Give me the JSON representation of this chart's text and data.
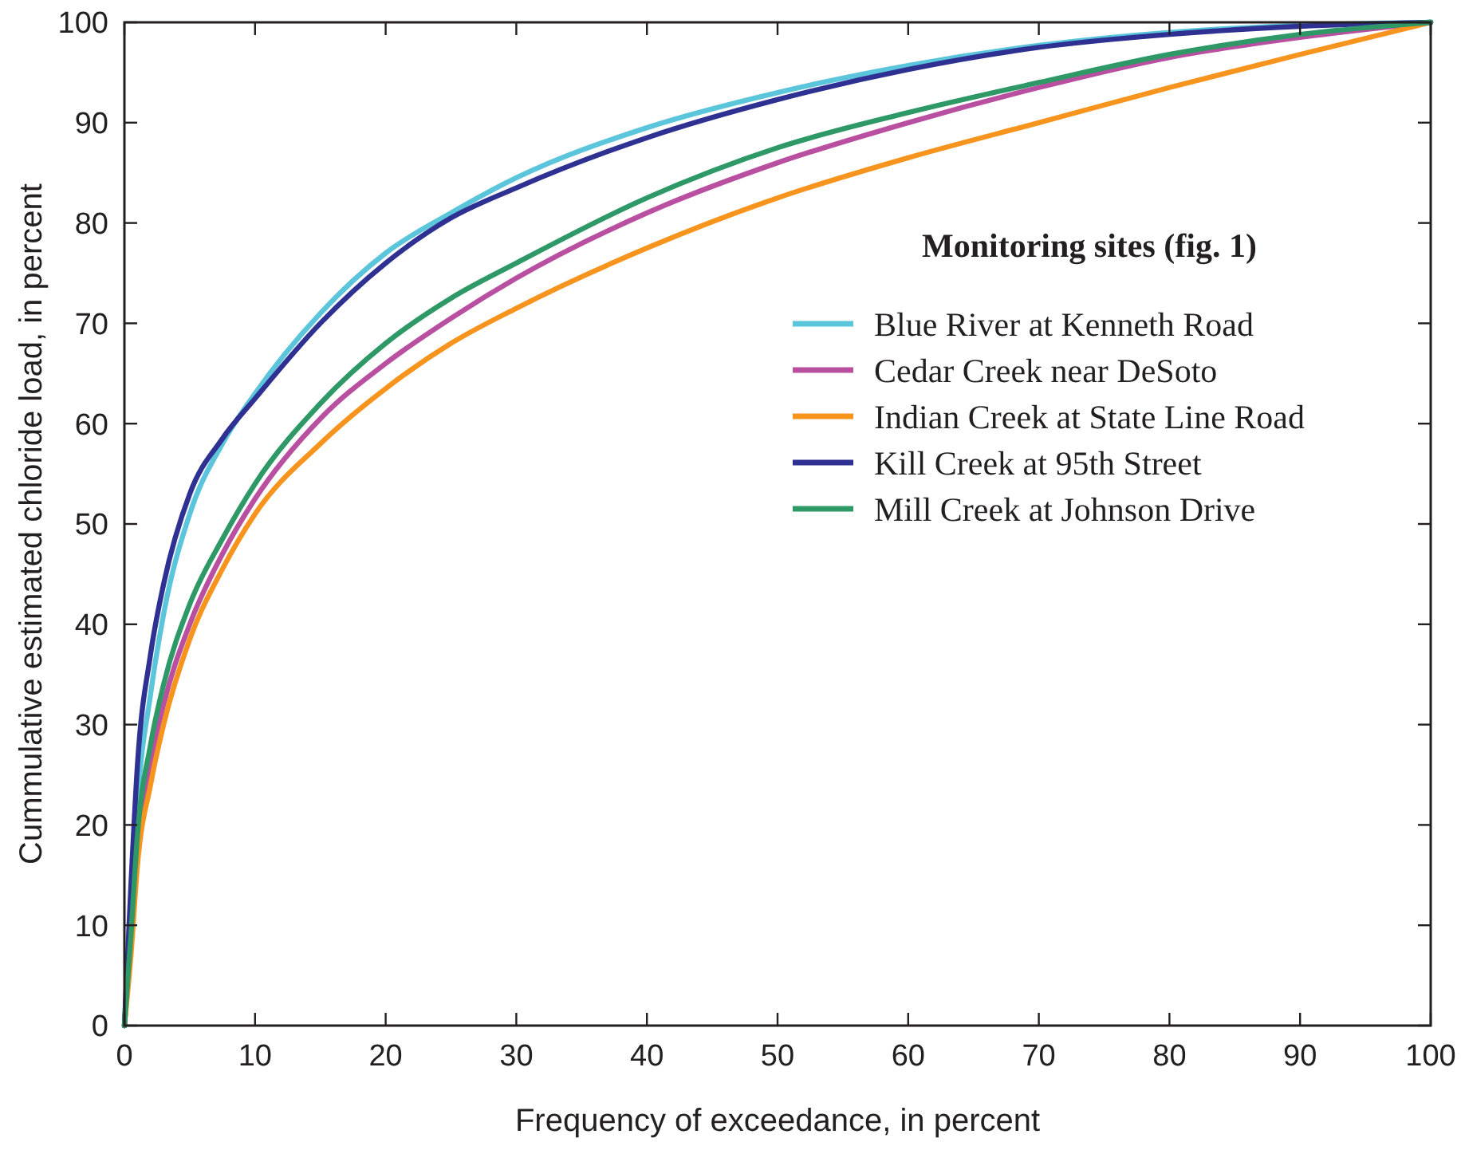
{
  "chart_data": {
    "type": "line",
    "xlabel": "Frequency of exceedance, in percent",
    "ylabel": "Cummulative estimated chloride load, in percent",
    "legend_title": "Monitoring sites (fig. 1)",
    "legend": "right",
    "grid": false,
    "marker": "none",
    "line_style": "solid",
    "x": [
      0,
      0.5,
      1,
      2,
      3,
      5,
      7.5,
      10,
      15,
      20,
      25,
      30,
      40,
      50,
      60,
      70,
      80,
      90,
      100
    ],
    "xlim": [
      0,
      100
    ],
    "ylim": [
      0,
      100
    ],
    "xticks": [
      0,
      10,
      20,
      30,
      40,
      50,
      60,
      70,
      80,
      90,
      100
    ],
    "yticks": [
      0,
      10,
      20,
      30,
      40,
      50,
      60,
      70,
      80,
      90,
      100
    ],
    "series": [
      {
        "name": "Blue River at Kenneth Road",
        "color": "#5bc5db",
        "values": [
          0,
          10,
          22,
          33,
          41,
          51,
          58,
          63,
          71,
          77,
          81,
          84.5,
          89.5,
          93,
          95.7,
          97.7,
          99,
          99.7,
          100
        ]
      },
      {
        "name": "Cedar Creek near DeSoto",
        "color": "#b94fa0",
        "values": [
          0,
          8,
          17,
          26,
          32,
          40,
          47,
          52.5,
          60.5,
          66,
          70.5,
          74.5,
          81,
          86,
          90,
          93.5,
          96.5,
          98.5,
          100
        ]
      },
      {
        "name": "Indian Creek at State Line Road",
        "color": "#f7941d",
        "values": [
          0,
          7,
          16,
          24,
          30,
          38.5,
          45.5,
          51,
          58,
          63.5,
          68,
          71.5,
          77.5,
          82.5,
          86.5,
          90,
          93.5,
          96.8,
          100
        ]
      },
      {
        "name": "Kill Creek at 95th Street",
        "color": "#2e3192",
        "values": [
          0,
          14,
          26,
          37,
          44,
          53,
          58.5,
          62.5,
          70,
          76,
          80.5,
          83.5,
          88.5,
          92.3,
          95.3,
          97.5,
          98.8,
          99.6,
          100
        ]
      },
      {
        "name": "Mill Creek at Johnson Drive",
        "color": "#2e9966",
        "values": [
          0,
          9,
          19,
          28,
          34,
          42,
          48.5,
          54,
          62,
          68,
          72.5,
          76,
          82.5,
          87.5,
          91,
          94,
          96.8,
          98.8,
          100
        ]
      }
    ]
  }
}
